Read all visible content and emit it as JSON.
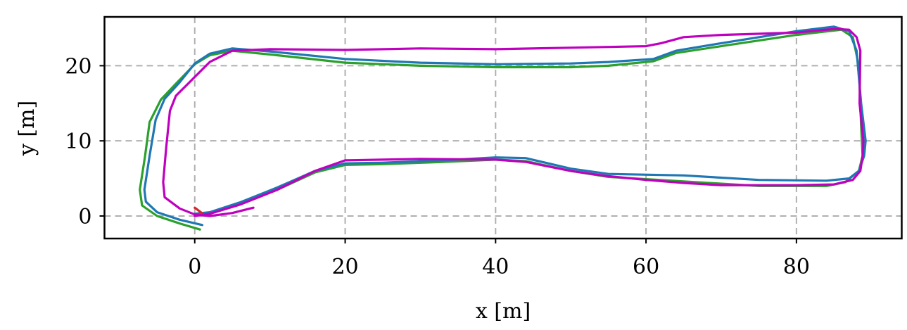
{
  "chart_data": {
    "type": "line",
    "xlabel": "x [m]",
    "ylabel": "y [m]",
    "xlim": [
      -12,
      94
    ],
    "ylim": [
      -3,
      26.5
    ],
    "xticks": [
      0,
      20,
      40,
      60,
      80
    ],
    "yticks": [
      0,
      10,
      20
    ],
    "grid": true,
    "series": [
      {
        "color": "#2ca02c",
        "points": [
          [
            0.7,
            -1.8
          ],
          [
            -2,
            -1.0
          ],
          [
            -5,
            0
          ],
          [
            -7,
            1.4
          ],
          [
            -7.3,
            3.5
          ],
          [
            -6.6,
            8
          ],
          [
            -6,
            12.5
          ],
          [
            -4.5,
            15.5
          ],
          [
            -2.5,
            17.6
          ],
          [
            0,
            20.2
          ],
          [
            2,
            21.4
          ],
          [
            5,
            22
          ],
          [
            10,
            21.5
          ],
          [
            20,
            20.4
          ],
          [
            30,
            20
          ],
          [
            40,
            19.8
          ],
          [
            50,
            19.8
          ],
          [
            55,
            20
          ],
          [
            61,
            20.6
          ],
          [
            64,
            21.7
          ],
          [
            70,
            22.6
          ],
          [
            80,
            24.1
          ],
          [
            86,
            24.8
          ],
          [
            87.5,
            23.8
          ],
          [
            88.3,
            20
          ],
          [
            88.6,
            12
          ],
          [
            88.8,
            8
          ],
          [
            88.3,
            6
          ],
          [
            86.5,
            4.5
          ],
          [
            84,
            4
          ],
          [
            75,
            4
          ],
          [
            65,
            4.6
          ],
          [
            55,
            5.2
          ],
          [
            50,
            6
          ],
          [
            44,
            7.3
          ],
          [
            40,
            7.5
          ],
          [
            33,
            7.2
          ],
          [
            25,
            6.9
          ],
          [
            20,
            6.8
          ],
          [
            16,
            5.8
          ],
          [
            11,
            3.5
          ],
          [
            6,
            1.6
          ],
          [
            2,
            0.4
          ],
          [
            0,
            0.1
          ]
        ]
      },
      {
        "color": "#1f77b4",
        "points": [
          [
            1,
            -1.2
          ],
          [
            -2,
            -0.5
          ],
          [
            -5,
            0.5
          ],
          [
            -6.5,
            1.9
          ],
          [
            -6.7,
            3.5
          ],
          [
            -6,
            8
          ],
          [
            -5.2,
            12.8
          ],
          [
            -4,
            15.6
          ],
          [
            -2,
            17.8
          ],
          [
            0,
            20.3
          ],
          [
            2,
            21.6
          ],
          [
            5,
            22.3
          ],
          [
            10,
            21.9
          ],
          [
            20,
            20.9
          ],
          [
            30,
            20.4
          ],
          [
            40,
            20.2
          ],
          [
            50,
            20.3
          ],
          [
            55,
            20.5
          ],
          [
            61,
            20.9
          ],
          [
            64,
            22
          ],
          [
            70,
            23
          ],
          [
            80,
            24.6
          ],
          [
            85,
            25.2
          ],
          [
            87,
            24.6
          ],
          [
            88,
            22
          ],
          [
            88.6,
            15
          ],
          [
            89.2,
            10
          ],
          [
            89,
            8
          ],
          [
            88.3,
            6
          ],
          [
            87,
            5
          ],
          [
            84,
            4.7
          ],
          [
            75,
            4.8
          ],
          [
            65,
            5.4
          ],
          [
            55,
            5.6
          ],
          [
            50,
            6.3
          ],
          [
            44,
            7.7
          ],
          [
            40,
            7.8
          ],
          [
            33,
            7.4
          ],
          [
            25,
            7.1
          ],
          [
            20,
            7
          ],
          [
            16,
            6
          ],
          [
            11,
            3.8
          ],
          [
            6,
            1.8
          ],
          [
            2,
            0.5
          ],
          [
            0,
            0.3
          ]
        ]
      },
      {
        "color": "#d62728",
        "points": [
          [
            0,
            1.1
          ],
          [
            1.2,
            0.2
          ]
        ]
      },
      {
        "color": "#bf00bf",
        "points": [
          [
            7.8,
            1.1
          ],
          [
            5,
            0.4
          ],
          [
            2,
            0
          ],
          [
            0,
            0.2
          ],
          [
            -2,
            1
          ],
          [
            -4,
            2.5
          ],
          [
            -4.2,
            4.5
          ],
          [
            -3.8,
            9
          ],
          [
            -3.3,
            14
          ],
          [
            -2.5,
            16
          ],
          [
            -1,
            17.5
          ],
          [
            0,
            18.5
          ],
          [
            2,
            20.5
          ],
          [
            5,
            22
          ],
          [
            10,
            22.2
          ],
          [
            20,
            22.1
          ],
          [
            30,
            22.3
          ],
          [
            40,
            22.2
          ],
          [
            50,
            22.4
          ],
          [
            60,
            22.6
          ],
          [
            62,
            23
          ],
          [
            65,
            23.8
          ],
          [
            70,
            24.1
          ],
          [
            80,
            24.4
          ],
          [
            85,
            24.9
          ],
          [
            87,
            24.8
          ],
          [
            88,
            23.8
          ],
          [
            88.5,
            22
          ],
          [
            88.4,
            15
          ],
          [
            88.9,
            10
          ],
          [
            88.8,
            8
          ],
          [
            88.5,
            6
          ],
          [
            87.5,
            4.8
          ],
          [
            85,
            4.2
          ],
          [
            80,
            4.1
          ],
          [
            70,
            4.1
          ],
          [
            65,
            4.4
          ],
          [
            60,
            4.8
          ],
          [
            55,
            5.3
          ],
          [
            50,
            6
          ],
          [
            44,
            7.2
          ],
          [
            40,
            7.5
          ],
          [
            30,
            7.6
          ],
          [
            25,
            7.5
          ],
          [
            20,
            7.4
          ],
          [
            16,
            6
          ],
          [
            11,
            3.5
          ],
          [
            6,
            1.5
          ],
          [
            2,
            0.3
          ],
          [
            0,
            0
          ]
        ]
      }
    ]
  }
}
